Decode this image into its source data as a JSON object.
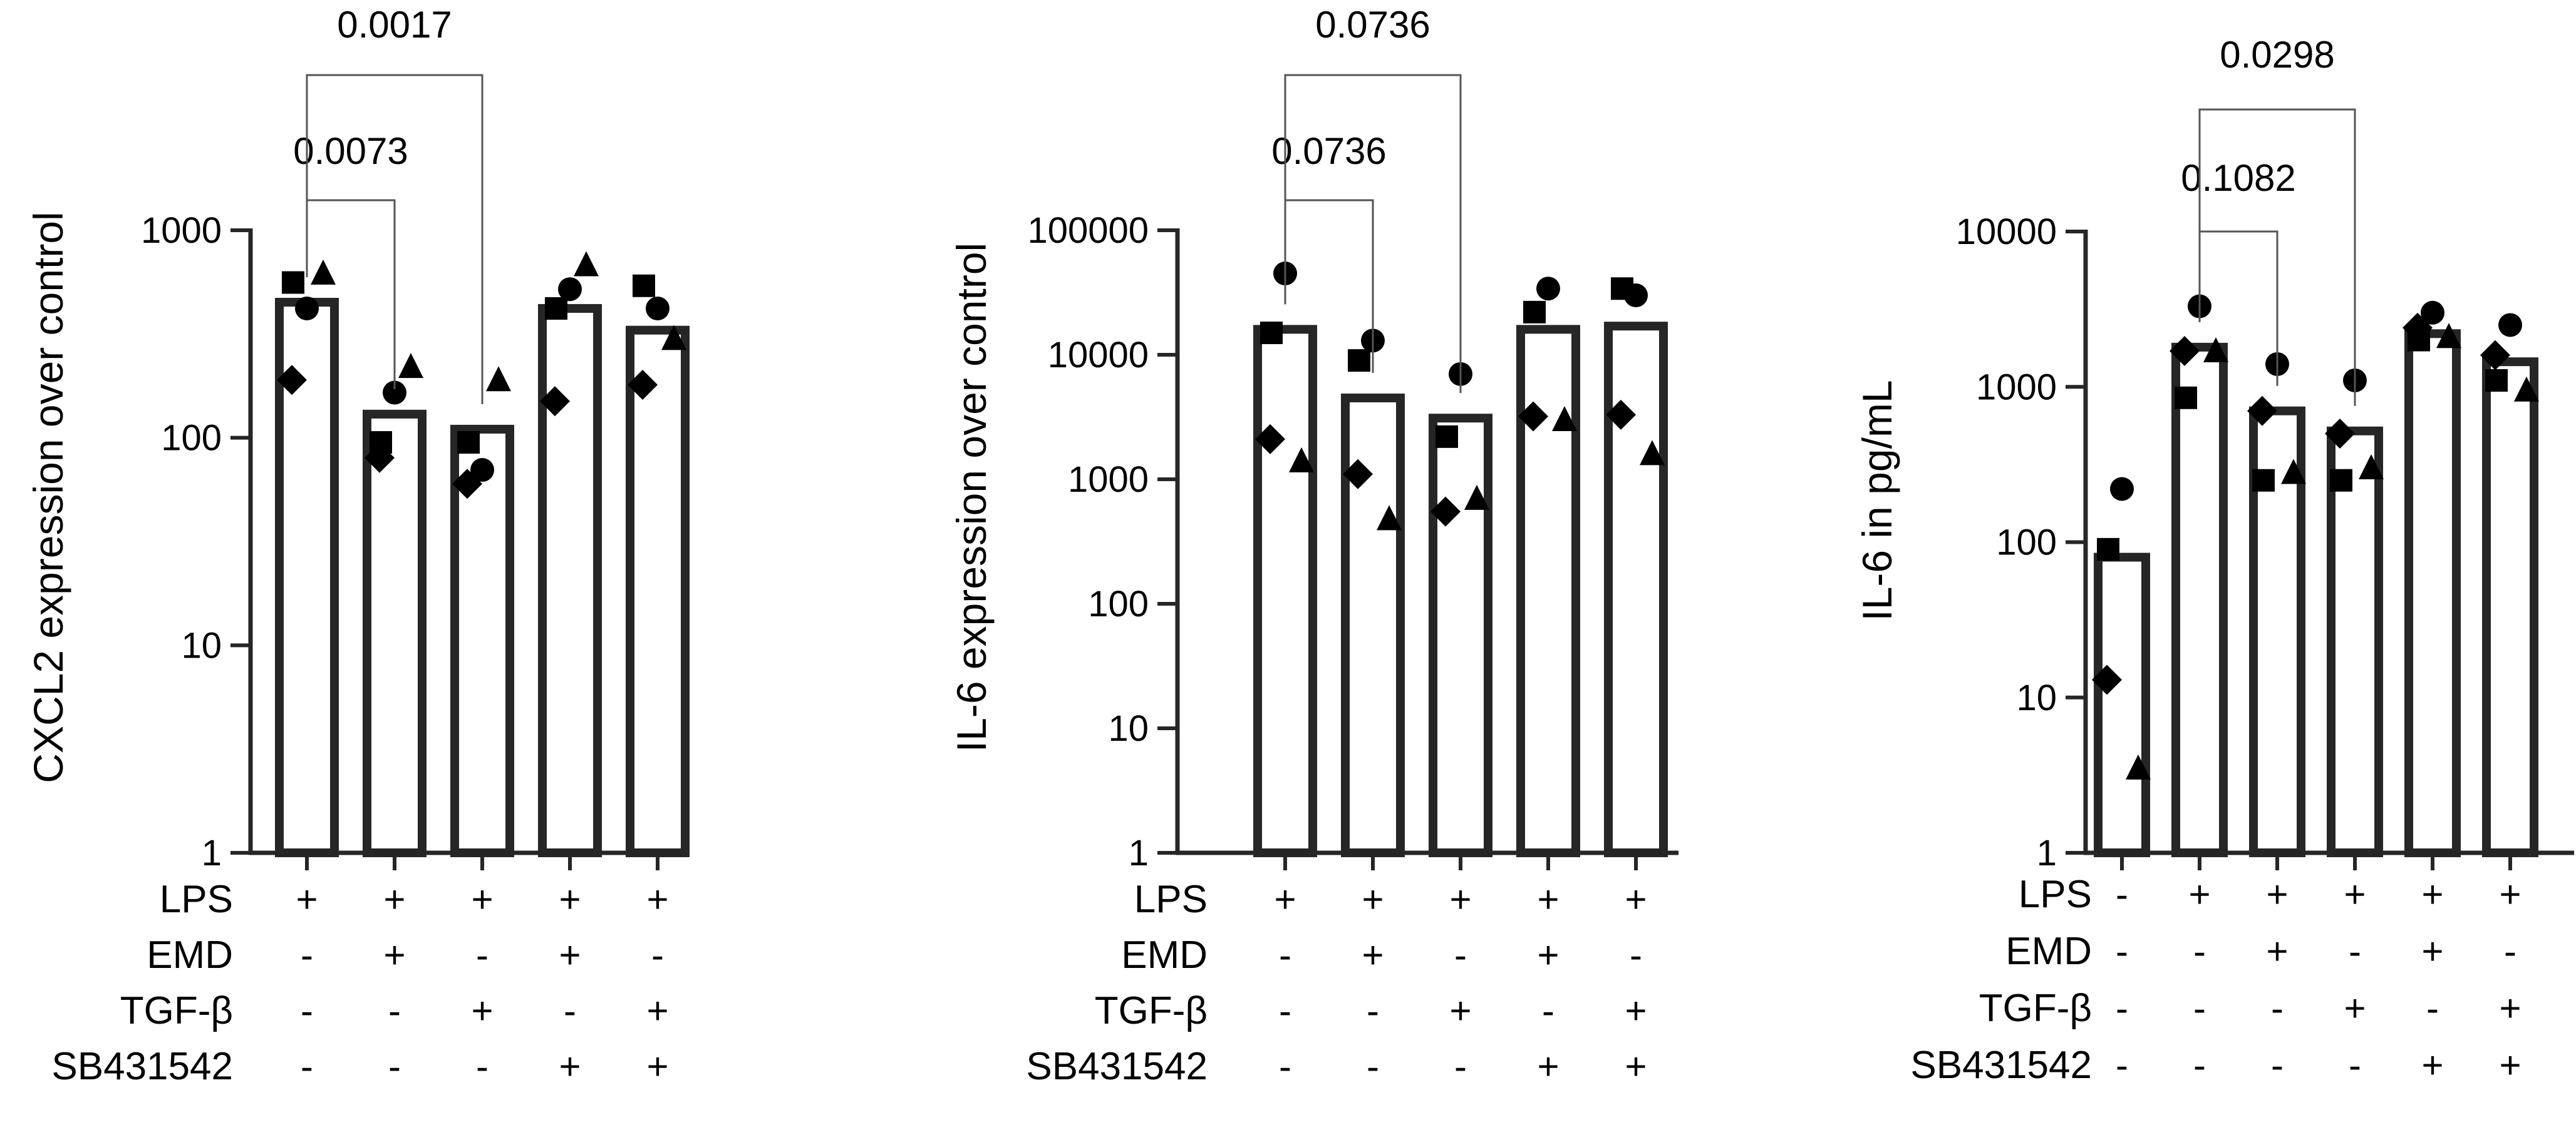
{
  "chart_data": [
    {
      "type": "bar",
      "ylabel": "CXCL2 expression over control",
      "yscale": "log",
      "ylim": [
        1,
        1000
      ],
      "yticks": [
        "1",
        "10",
        "100",
        "1000"
      ],
      "grid": false,
      "legend": "none",
      "bar_color": "#ffffff",
      "edge_color": "#262626",
      "condition_rows": [
        {
          "label": "LPS",
          "signs": [
            "+",
            "+",
            "+",
            "+",
            "+"
          ]
        },
        {
          "label": "EMD",
          "signs": [
            "-",
            "+",
            "-",
            "+",
            "-"
          ]
        },
        {
          "label": "TGF-β",
          "signs": [
            "-",
            "-",
            "+",
            "-",
            "+"
          ]
        },
        {
          "label": "SB431542",
          "signs": [
            "-",
            "-",
            "-",
            "+",
            "+"
          ]
        }
      ],
      "values": [
        450,
        130,
        110,
        420,
        330
      ],
      "points": [
        {
          "marker": "square",
          "values": [
            560,
            95,
            95,
            420,
            540
          ]
        },
        {
          "marker": "triangle",
          "values": [
            620,
            220,
            190,
            680,
            300
          ]
        },
        {
          "marker": "circle",
          "values": [
            420,
            165,
            70,
            520,
            420
          ]
        },
        {
          "marker": "diamond",
          "values": [
            190,
            80,
            60,
            150,
            180
          ]
        }
      ],
      "comparisons": [
        {
          "from": 0,
          "to": 1,
          "label": "0.0073",
          "level": 1
        },
        {
          "from": 0,
          "to": 2,
          "label": "0.0017",
          "level": 2
        }
      ]
    },
    {
      "type": "bar",
      "ylabel": "IL-6 expression over control",
      "yscale": "log",
      "ylim": [
        1,
        100000
      ],
      "yticks": [
        "1",
        "10",
        "100",
        "1000",
        "10000",
        "100000"
      ],
      "grid": false,
      "legend": "none",
      "bar_color": "#ffffff",
      "edge_color": "#262626",
      "condition_rows": [
        {
          "label": "LPS",
          "signs": [
            "+",
            "+",
            "+",
            "+",
            "+"
          ]
        },
        {
          "label": "EMD",
          "signs": [
            "-",
            "+",
            "-",
            "+",
            "-"
          ]
        },
        {
          "label": "TGF-β",
          "signs": [
            "-",
            "-",
            "+",
            "-",
            "+"
          ]
        },
        {
          "label": "SB431542",
          "signs": [
            "-",
            "-",
            "-",
            "+",
            "+"
          ]
        }
      ],
      "values": [
        16000,
        4500,
        3100,
        16000,
        17000
      ],
      "points": [
        {
          "marker": "square",
          "values": [
            15000,
            9000,
            2200,
            22000,
            34000
          ]
        },
        {
          "marker": "triangle",
          "values": [
            1400,
            480,
            700,
            3000,
            1600
          ]
        },
        {
          "marker": "circle",
          "values": [
            45000,
            13000,
            7000,
            34000,
            30000
          ]
        },
        {
          "marker": "diamond",
          "values": [
            2100,
            1100,
            550,
            3200,
            3300
          ]
        }
      ],
      "comparisons": [
        {
          "from": 0,
          "to": 1,
          "label": "0.0736",
          "level": 1
        },
        {
          "from": 0,
          "to": 2,
          "label": "0.0736",
          "level": 2
        }
      ]
    },
    {
      "type": "bar",
      "ylabel": "IL-6 in pg/mL",
      "yscale": "log",
      "ylim": [
        1,
        10000
      ],
      "yticks": [
        "1",
        "10",
        "100",
        "1000",
        "10000"
      ],
      "grid": false,
      "legend": "none",
      "bar_color": "#ffffff",
      "edge_color": "#262626",
      "condition_rows": [
        {
          "label": "LPS",
          "signs": [
            "-",
            "+",
            "+",
            "+",
            "+",
            "+"
          ]
        },
        {
          "label": "EMD",
          "signs": [
            "-",
            "-",
            "+",
            "-",
            "+",
            "-"
          ]
        },
        {
          "label": "TGF-β",
          "signs": [
            "-",
            "-",
            "-",
            "+",
            "-",
            "+"
          ]
        },
        {
          "label": "SB431542",
          "signs": [
            "-",
            "-",
            "-",
            "-",
            "+",
            "+"
          ]
        }
      ],
      "values": [
        80,
        1800,
        700,
        520,
        2200,
        1450
      ],
      "points": [
        {
          "marker": "square",
          "values": [
            90,
            850,
            250,
            250,
            2000,
            1100
          ]
        },
        {
          "marker": "triangle",
          "values": [
            3.5,
            1700,
            280,
            300,
            2100,
            950
          ]
        },
        {
          "marker": "circle",
          "values": [
            220,
            3300,
            1400,
            1100,
            3000,
            2500
          ]
        },
        {
          "marker": "diamond",
          "values": [
            13,
            1700,
            700,
            500,
            2400,
            1600
          ]
        }
      ],
      "comparisons": [
        {
          "from": 1,
          "to": 2,
          "label": "0.1082",
          "level": 1
        },
        {
          "from": 1,
          "to": 3,
          "label": "0.0298",
          "level": 2
        }
      ]
    }
  ]
}
